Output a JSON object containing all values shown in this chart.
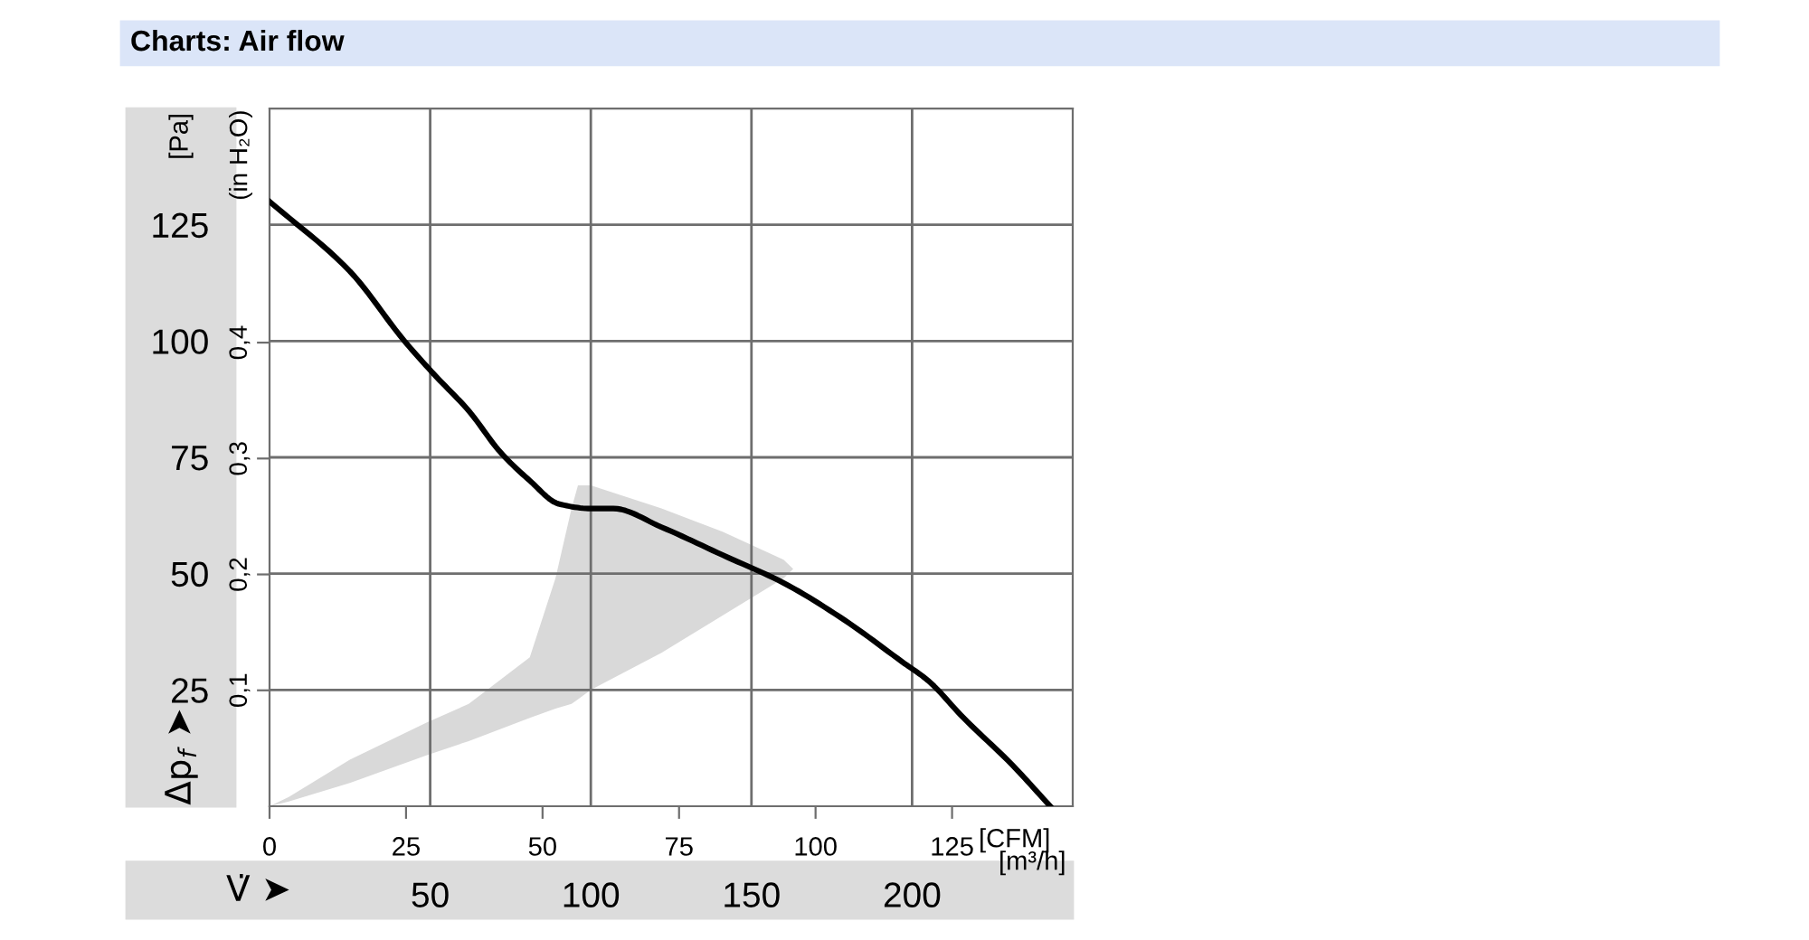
{
  "chart_data": {
    "type": "line",
    "title": "Charts: Air flow",
    "xlabel": "[m³/h]",
    "x2label": "[CFM]",
    "ylabel": "[Pa]",
    "y2label": "(in H₂O)",
    "annotations": [
      "V̇ ➤",
      "Δp$_{f}$ ➤"
    ],
    "xlim": [
      0,
      250
    ],
    "xticks": [
      50,
      100,
      150,
      200
    ],
    "x2lim": [
      0,
      147.1
    ],
    "x2ticks": [
      0,
      25,
      50,
      75,
      100,
      125
    ],
    "ylim": [
      0,
      150
    ],
    "yticks": [
      25,
      50,
      75,
      100,
      125
    ],
    "y2lim": [
      0,
      0.602
    ],
    "y2ticks": [
      {
        "value": 0.1,
        "label": "0,1"
      },
      {
        "value": 0.2,
        "label": "0,2"
      },
      {
        "value": 0.3,
        "label": "0,3"
      },
      {
        "value": 0.4,
        "label": "0,4"
      }
    ],
    "grid": true,
    "line_style": "solid",
    "series": [
      {
        "type": "area",
        "color": "#d9d9d9",
        "x": [
          0,
          6,
          25,
          49,
          62,
          81,
          89,
          94,
          96,
          100,
          122,
          141,
          160,
          163,
          160,
          141,
          122,
          100,
          96,
          94,
          89,
          81,
          62,
          49,
          25,
          6
        ],
        "values": [
          0,
          2,
          10,
          18,
          22,
          32,
          49,
          64,
          69,
          69,
          64,
          59,
          53,
          51,
          49,
          41,
          33,
          25,
          23,
          22,
          21,
          19,
          14,
          11,
          5,
          1
        ]
      },
      {
        "color": "#000000",
        "x": [
          0,
          25,
          42,
          51,
          62,
          72,
          81,
          90,
          100,
          107,
          122,
          141,
          160,
          179,
          197,
          205,
          216,
          231,
          243
        ],
        "values": [
          130,
          115,
          100,
          93,
          85,
          76,
          70,
          65,
          64,
          64,
          60,
          54,
          48,
          40,
          31,
          27,
          19,
          9,
          0
        ]
      }
    ]
  }
}
